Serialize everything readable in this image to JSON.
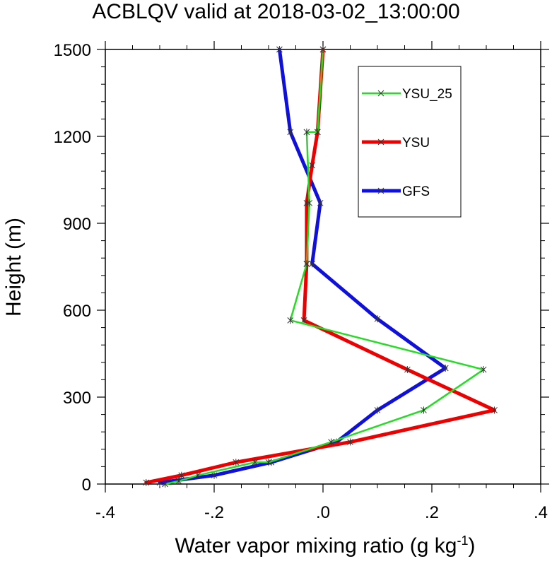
{
  "chart_data": {
    "type": "line",
    "title": "ACBLQV valid at 2018-03-02_13:00:00",
    "xlabel_main": "Water vapor mixing ratio (g kg",
    "xlabel_sup": "-1",
    "xlabel_tail": ")",
    "ylabel": "Height (m)",
    "xlim": [
      -0.4,
      0.4
    ],
    "ylim": [
      0,
      1500
    ],
    "xticks": [
      -0.4,
      -0.2,
      0.0,
      0.2,
      0.4
    ],
    "xtick_labels": [
      "-.4",
      "-.2",
      ".0",
      ".2",
      ".4"
    ],
    "yticks": [
      0,
      300,
      600,
      900,
      1200,
      1500
    ],
    "ytick_labels": [
      "0",
      "300",
      "600",
      "900",
      "1200",
      "1500"
    ],
    "grid": false,
    "legend_position": "top-right",
    "series": [
      {
        "name": "YSU_25",
        "color": "#22dd22",
        "x": [
          -0.29,
          -0.265,
          -0.23,
          -0.125,
          -0.1,
          0.015,
          0.185,
          0.295,
          -0.06,
          -0.03,
          -0.025,
          -0.03,
          -0.01,
          0.0
        ],
        "y": [
          0,
          10,
          30,
          75,
          75,
          145,
          255,
          395,
          565,
          760,
          970,
          1215,
          1215,
          1500
        ]
      },
      {
        "name": "YSU",
        "color": "#ee0000",
        "x": [
          -0.325,
          -0.26,
          -0.16,
          0.05,
          0.315,
          0.155,
          -0.035,
          -0.03,
          -0.03,
          -0.02,
          -0.01,
          0.0
        ],
        "y": [
          5,
          30,
          75,
          145,
          255,
          395,
          565,
          760,
          970,
          1100,
          1215,
          1500
        ]
      },
      {
        "name": "GFS",
        "color": "#1010dd",
        "x": [
          -0.3,
          -0.2,
          -0.095,
          0.025,
          0.1,
          0.225,
          0.1,
          -0.02,
          -0.005,
          -0.06,
          -0.08
        ],
        "y": [
          5,
          30,
          75,
          145,
          255,
          400,
          570,
          760,
          970,
          1215,
          1500
        ]
      }
    ],
    "legend": {
      "items": [
        "YSU_25",
        "YSU",
        "GFS"
      ]
    }
  }
}
